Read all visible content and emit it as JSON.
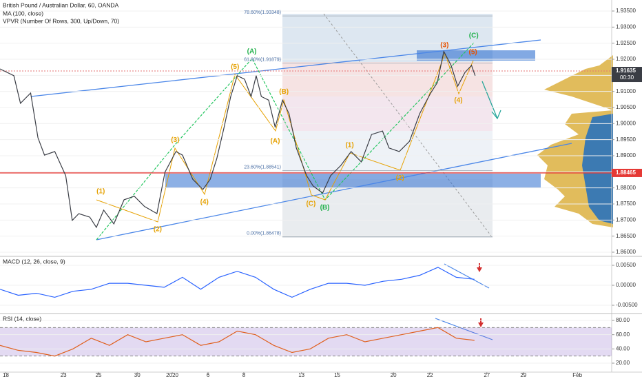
{
  "chart_data": [
    {
      "type": "line",
      "title": "British Pound / Australian Dollar, 60, OANDA",
      "indicators": [
        "MA (100, close)",
        "VPVR (Number Of Rows, 300, Up/Down, 70)"
      ],
      "color": "#3a3d45",
      "x": [
        0,
        19,
        28,
        42,
        52,
        61,
        75,
        90,
        99,
        108,
        123,
        132,
        142,
        156,
        170,
        184,
        198,
        215,
        226,
        241,
        250,
        264,
        278,
        288,
        297,
        307,
        316,
        325,
        335,
        344,
        351,
        358,
        368,
        377,
        387,
        396,
        406,
        420,
        429,
        442,
        453,
        467,
        481,
        495,
        509,
        524,
        533,
        547,
        561,
        575,
        590,
        599,
        608,
        618,
        627,
        637,
        646,
        651
      ],
      "values": [
        1.917,
        1.9149,
        1.9063,
        1.9095,
        1.8956,
        1.8902,
        1.8913,
        1.8838,
        1.8699,
        1.872,
        1.8709,
        1.8677,
        1.8731,
        1.8688,
        1.8763,
        1.8774,
        1.8742,
        1.872,
        1.8849,
        1.8913,
        1.8902,
        1.8827,
        1.8795,
        1.8827,
        1.8891,
        1.8988,
        1.9084,
        1.9149,
        1.9138,
        1.9084,
        1.9149,
        1.9084,
        1.9073,
        1.8988,
        1.9073,
        1.9031,
        1.8924,
        1.8838,
        1.8806,
        1.8784,
        1.8838,
        1.887,
        1.8913,
        1.8881,
        1.8966,
        1.8977,
        1.8924,
        1.8913,
        1.8945,
        1.9031,
        1.9095,
        1.9127,
        1.9224,
        1.9181,
        1.9116,
        1.9159,
        1.9181,
        1.9149
      ],
      "xlim": [
        0,
        838
      ],
      "ylim": [
        1.85871,
        1.93843
      ],
      "yticks": [
        {
          "value": 1.86,
          "label": "1.86000"
        },
        {
          "value": 1.865,
          "label": "1.86500"
        },
        {
          "value": 1.87,
          "label": "1.87000"
        },
        {
          "value": 1.875,
          "label": "1.87500"
        },
        {
          "value": 1.88,
          "label": "1.88000"
        },
        {
          "value": 1.885,
          "label": "1.88500"
        },
        {
          "value": 1.89,
          "label": "1.89000"
        },
        {
          "value": 1.895,
          "label": "1.89500"
        },
        {
          "value": 1.9,
          "label": "1.90000"
        },
        {
          "value": 1.905,
          "label": "1.90500"
        },
        {
          "value": 1.91,
          "label": "1.91000"
        },
        {
          "value": 1.915,
          "label": "1.91500"
        },
        {
          "value": 1.92,
          "label": "1.92000"
        },
        {
          "value": 1.925,
          "label": "1.92500"
        },
        {
          "value": 1.93,
          "label": "1.93000"
        },
        {
          "value": 1.935,
          "label": "1.93500"
        }
      ],
      "xticks": [
        {
          "value": 8,
          "label": "18"
        },
        {
          "value": 87,
          "label": "23"
        },
        {
          "value": 135,
          "label": "25"
        },
        {
          "value": 188,
          "label": "30"
        },
        {
          "value": 236,
          "label": "2020"
        },
        {
          "value": 285,
          "label": "6"
        },
        {
          "value": 334,
          "label": "8"
        },
        {
          "value": 413,
          "label": "13"
        },
        {
          "value": 462,
          "label": "15"
        },
        {
          "value": 539,
          "label": "20"
        },
        {
          "value": 589,
          "label": "22"
        },
        {
          "value": 667,
          "label": "27"
        },
        {
          "value": 717,
          "label": "29"
        },
        {
          "value": 791,
          "label": "Feb"
        }
      ],
      "fib": [
        {
          "value": 1.93348,
          "label": "78.60%(1.93348)"
        },
        {
          "value": 1.91879,
          "label": "61.80%(1.91879)"
        },
        {
          "value": 1.88541,
          "label": "23.60%(1.88541)"
        },
        {
          "value": 1.86478,
          "label": "0.00%(1.86478)"
        }
      ],
      "hlines": [
        {
          "value": 1.88465,
          "color": "#e53935"
        }
      ],
      "last_price": {
        "value": 1.91635,
        "time": "00:30"
      },
      "annotations": [
        {
          "text": "(1)",
          "x": 138,
          "y": 1.8789,
          "color": "#e6a100"
        },
        {
          "text": "(2)",
          "x": 216,
          "y": 1.8671,
          "color": "#e6a100"
        },
        {
          "text": "(3)",
          "x": 240,
          "y": 1.8949,
          "color": "#e6a100"
        },
        {
          "text": "(4)",
          "x": 280,
          "y": 1.8756,
          "color": "#e6a100"
        },
        {
          "text": "(5)",
          "x": 322,
          "y": 1.9176,
          "color": "#e6a100"
        },
        {
          "text": "(A)",
          "x": 377,
          "y": 1.8945,
          "color": "#e6a100"
        },
        {
          "text": "(B)",
          "x": 389,
          "y": 1.9099,
          "color": "#e6a100"
        },
        {
          "text": "(C)",
          "x": 426,
          "y": 1.875,
          "color": "#e6a100"
        },
        {
          "text": "(1)",
          "x": 479,
          "y": 1.8932,
          "color": "#e6a100"
        },
        {
          "text": "(2)",
          "x": 548,
          "y": 1.8831,
          "color": "#e6a100"
        },
        {
          "text": "(3)",
          "x": 609,
          "y": 1.9243,
          "color": "#e65100"
        },
        {
          "text": "(4)",
          "x": 628,
          "y": 1.9072,
          "color": "#e6a100"
        },
        {
          "text": "(5)",
          "x": 648,
          "y": 1.9222,
          "color": "#e65100"
        },
        {
          "text": "(A)",
          "x": 345,
          "y": 1.9224,
          "color": "#22b14c"
        },
        {
          "text": "(B)",
          "x": 445,
          "y": 1.8739,
          "color": "#22b14c"
        },
        {
          "text": "(C)",
          "x": 649,
          "y": 1.9273,
          "color": "#22b14c"
        }
      ]
    },
    {
      "type": "line",
      "title": "MACD (12, 26, close, 9)",
      "color": "#2962ff",
      "x": [
        0,
        25,
        50,
        75,
        100,
        125,
        150,
        175,
        200,
        225,
        250,
        275,
        300,
        325,
        350,
        375,
        400,
        425,
        450,
        475,
        500,
        525,
        550,
        575,
        600,
        625,
        650
      ],
      "values": [
        -0.001,
        -0.0025,
        -0.002,
        -0.003,
        -0.0015,
        -0.001,
        0.0005,
        0.0005,
        0.0,
        -0.0005,
        0.002,
        -0.001,
        0.002,
        0.0035,
        0.002,
        -0.001,
        -0.003,
        -0.001,
        0.0005,
        0.0005,
        0.0,
        0.001,
        0.0015,
        0.0025,
        0.0045,
        0.002,
        0.0015
      ],
      "xlim": [
        0,
        838
      ],
      "ylim": [
        -0.00655,
        0.00724
      ],
      "yticks": [
        {
          "value": 0.005,
          "label": "0.00500"
        },
        {
          "value": 0,
          "label": "0.00000"
        },
        {
          "value": -0.005,
          "label": "-0.00500"
        }
      ]
    },
    {
      "type": "line",
      "title": "RSI (14, close)",
      "color": "#e0601e",
      "x": [
        0,
        25,
        50,
        75,
        100,
        125,
        150,
        175,
        200,
        225,
        250,
        275,
        300,
        325,
        350,
        375,
        400,
        425,
        450,
        475,
        500,
        525,
        550,
        575,
        600,
        625,
        650
      ],
      "values": [
        45,
        38,
        35,
        30,
        40,
        55,
        45,
        60,
        50,
        55,
        60,
        45,
        50,
        65,
        60,
        45,
        35,
        40,
        55,
        60,
        50,
        55,
        60,
        65,
        70,
        55,
        52
      ],
      "xlim": [
        0,
        838
      ],
      "ylim": [
        7.4,
        89.7
      ],
      "band": [
        30,
        70
      ],
      "yticks": [
        {
          "value": 80,
          "label": "80.00"
        },
        {
          "value": 60,
          "label": "60.00"
        },
        {
          "value": 40,
          "label": "40.00"
        },
        {
          "value": 20,
          "label": "20.00"
        }
      ]
    }
  ]
}
